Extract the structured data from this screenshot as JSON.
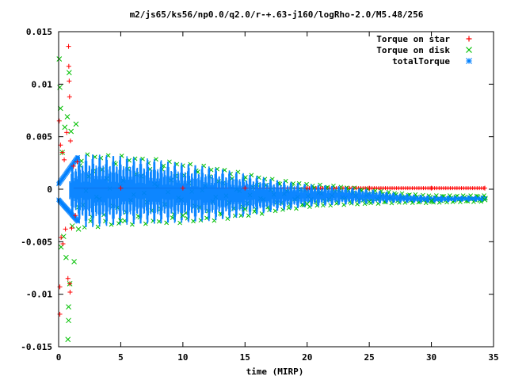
{
  "chart_data": {
    "type": "scatter",
    "title": "m2/js65/ks56/np0.0/q2.0/r-+.63-j160/logRho-2.0/M5.48/256",
    "xlabel": "time (MIRP)",
    "ylabel": "",
    "xlim": [
      0,
      35
    ],
    "ylim": [
      -0.015,
      0.015
    ],
    "x_ticks": [
      0,
      5,
      10,
      15,
      20,
      25,
      30,
      35
    ],
    "y_ticks": [
      -0.015,
      -0.01,
      -0.005,
      0,
      0.005,
      0.01,
      0.015
    ],
    "x_tick_labels": [
      "0",
      "5",
      "10",
      "15",
      "20",
      "25",
      "30",
      "35"
    ],
    "y_tick_labels": [
      "-0.015",
      "-0.01",
      "-0.005",
      "0",
      "0.005",
      "0.01",
      "0.015"
    ],
    "legend_position": "top-right",
    "grid": false,
    "series": [
      {
        "name": "Torque on star",
        "marker": "plus",
        "color": "#ff0000",
        "samples": [
          {
            "x": 0.05,
            "y": 0.0065
          },
          {
            "x": 0.1,
            "y": -0.0093
          },
          {
            "x": 0.1,
            "y": -0.0119
          },
          {
            "x": 0.15,
            "y": 0.0042
          },
          {
            "x": 0.2,
            "y": -0.0046
          },
          {
            "x": 0.3,
            "y": 0.0035
          },
          {
            "x": 0.35,
            "y": -0.0052
          },
          {
            "x": 0.45,
            "y": 0.0028
          },
          {
            "x": 0.55,
            "y": -0.0038
          },
          {
            "x": 0.65,
            "y": 0.0054
          },
          {
            "x": 0.75,
            "y": -0.0085
          },
          {
            "x": 0.8,
            "y": 0.0136
          },
          {
            "x": 0.82,
            "y": 0.0117
          },
          {
            "x": 0.85,
            "y": 0.0103
          },
          {
            "x": 0.88,
            "y": 0.0088
          },
          {
            "x": 0.9,
            "y": -0.009
          },
          {
            "x": 0.92,
            "y": -0.0098
          },
          {
            "x": 0.95,
            "y": 0.0046
          },
          {
            "x": 1.05,
            "y": -0.0037
          },
          {
            "x": 1.2,
            "y": 0.0022
          },
          {
            "x": 1.35,
            "y": -0.0025
          },
          {
            "x": 1.5,
            "y": 0.0026
          },
          {
            "x": 5,
            "y": 0.0001
          },
          {
            "x": 10,
            "y": 0.0001
          },
          {
            "x": 15,
            "y": 0.0001
          },
          {
            "x": 20,
            "y": 0.0001
          },
          {
            "x": 25,
            "y": 0.0001
          },
          {
            "x": 30,
            "y": 0.0001
          },
          {
            "x": 34.3,
            "y": 0.0001
          }
        ]
      },
      {
        "name": "Torque on disk",
        "marker": "cross",
        "color": "#00c000",
        "samples": [
          {
            "x": 0.05,
            "y": 0.0124
          },
          {
            "x": 0.1,
            "y": 0.0097
          },
          {
            "x": 0.15,
            "y": 0.0077
          },
          {
            "x": 0.2,
            "y": -0.0055
          },
          {
            "x": 0.3,
            "y": 0.0035
          },
          {
            "x": 0.4,
            "y": -0.0045
          },
          {
            "x": 0.5,
            "y": 0.0059
          },
          {
            "x": 0.6,
            "y": -0.0065
          },
          {
            "x": 0.7,
            "y": 0.0069
          },
          {
            "x": 0.75,
            "y": -0.0143
          },
          {
            "x": 0.8,
            "y": -0.0125
          },
          {
            "x": 0.8,
            "y": -0.0112
          },
          {
            "x": 0.85,
            "y": 0.0111
          },
          {
            "x": 0.9,
            "y": -0.009
          },
          {
            "x": 1.0,
            "y": 0.0055
          },
          {
            "x": 1.1,
            "y": -0.0035
          },
          {
            "x": 1.25,
            "y": -0.0069
          },
          {
            "x": 1.4,
            "y": 0.0062
          },
          {
            "x": 1.6,
            "y": -0.0038
          },
          {
            "x": 5,
            "y": -0.003
          },
          {
            "x": 10,
            "y": -0.0025
          },
          {
            "x": 15,
            "y": -0.0019
          },
          {
            "x": 20,
            "y": -0.0014
          },
          {
            "x": 25,
            "y": -0.0012
          },
          {
            "x": 30,
            "y": -0.0011
          },
          {
            "x": 34.3,
            "y": -0.001
          }
        ]
      },
      {
        "name": "totalTorque",
        "marker": "star",
        "color": "#0080ff",
        "envelope": {
          "x": [
            0,
            1.5,
            2,
            3,
            5,
            7.5,
            10,
            12.5,
            15,
            17.5,
            20,
            22.5,
            25,
            27.5,
            30,
            32.5,
            34.5
          ],
          "upper": [
            0.0005,
            0.003,
            0.0034,
            0.0033,
            0.0032,
            0.0029,
            0.0025,
            0.0021,
            0.0015,
            0.0009,
            0.0005,
            0.0003,
            0.0,
            -0.0004,
            -0.0006,
            -0.0006,
            -0.0006
          ],
          "lower": [
            -0.001,
            -0.003,
            -0.0037,
            -0.0036,
            -0.0034,
            -0.0033,
            -0.0032,
            -0.003,
            -0.0026,
            -0.0021,
            -0.0017,
            -0.0015,
            -0.0014,
            -0.0013,
            -0.0013,
            -0.0012,
            -0.0012
          ]
        },
        "oscillation_period": 0.55
      }
    ]
  }
}
